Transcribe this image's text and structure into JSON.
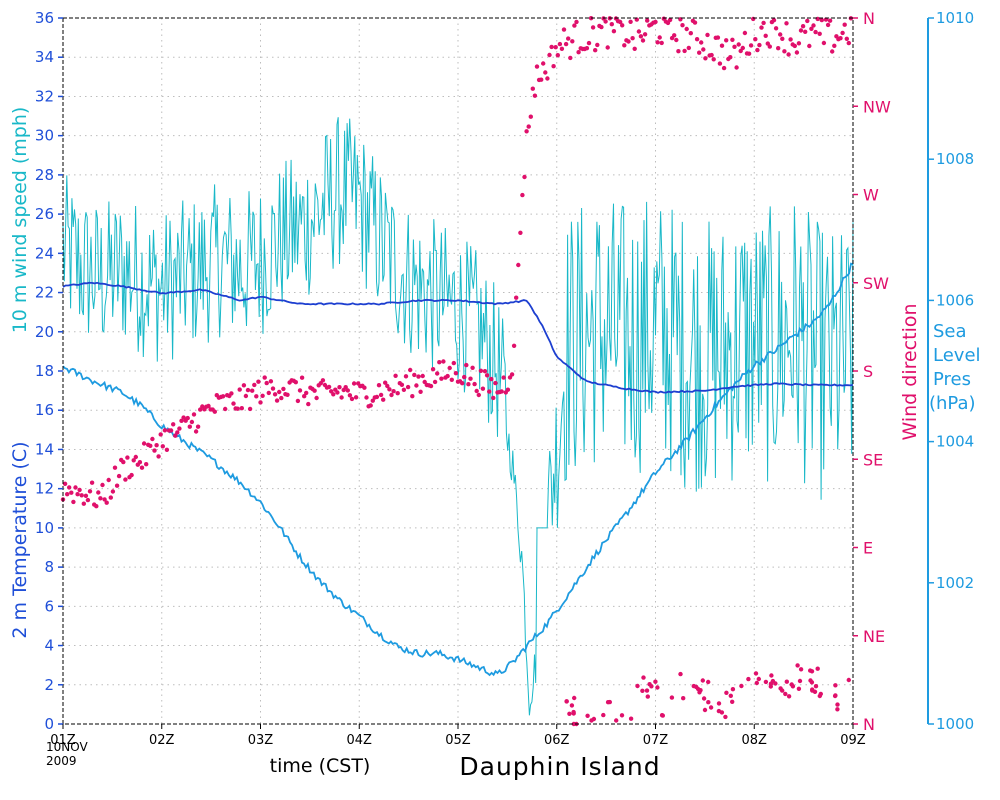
{
  "chart_data": {
    "type": "line",
    "title": "Dauphin Island",
    "xlabel": "time (CST)",
    "date_label": [
      "10NOV",
      "2009"
    ],
    "x_ticks": [
      "01Z",
      "02Z",
      "03Z",
      "04Z",
      "05Z",
      "06Z",
      "07Z",
      "08Z",
      "09Z"
    ],
    "xlim_hours": [
      1,
      9
    ],
    "axes": {
      "left": {
        "ylim": [
          0,
          36
        ],
        "ticks": [
          0,
          2,
          4,
          6,
          8,
          10,
          12,
          14,
          16,
          18,
          20,
          22,
          24,
          26,
          28,
          30,
          32,
          34,
          36
        ],
        "label_parts": {
          "temp": "2 m Temperature (C)",
          "mid": "10 m ",
          "wind": "wind speed (mph)"
        }
      },
      "right_direction": {
        "label": "Wind direction",
        "ticks": [
          "N",
          "NE",
          "E",
          "SE",
          "S",
          "SW",
          "W",
          "NW",
          "N"
        ]
      },
      "right_pressure": {
        "label_lines": [
          "Sea",
          "Level",
          "Pres",
          "(hPa)"
        ],
        "ylim": [
          1000,
          1010
        ],
        "ticks": [
          1000,
          1002,
          1004,
          1006,
          1008,
          1010
        ]
      }
    },
    "series": [
      {
        "name": "2 m Temperature (C)",
        "color": "#1e9be0",
        "x": [
          1.0,
          1.3,
          1.6,
          1.8,
          2.0,
          2.2,
          2.5,
          2.8,
          3.0,
          3.2,
          3.4,
          3.6,
          3.8,
          4.0,
          4.2,
          4.4,
          4.6,
          4.8,
          5.0,
          5.2,
          5.4,
          5.55,
          5.7,
          5.9,
          6.1,
          6.4,
          6.7,
          7.0,
          7.3,
          7.6,
          7.8,
          8.0,
          8.2,
          8.4,
          8.6,
          8.75,
          8.9,
          9.0
        ],
        "y": [
          18.2,
          17.5,
          16.9,
          16.2,
          15.2,
          14.5,
          13.5,
          12.3,
          11.3,
          10.0,
          8.5,
          7.3,
          6.3,
          5.5,
          4.6,
          3.9,
          3.6,
          3.6,
          3.3,
          2.9,
          2.5,
          3.1,
          4.0,
          5.1,
          6.5,
          8.7,
          10.7,
          12.8,
          14.4,
          16.2,
          17.3,
          18.3,
          19.0,
          19.8,
          20.5,
          21.3,
          22.6,
          23.5
        ]
      },
      {
        "name": "10 m wind speed (mph)",
        "color": "#19b8c8",
        "x": [
          1.0,
          1.2,
          1.4,
          1.6,
          1.8,
          2.0,
          2.2,
          2.4,
          2.6,
          2.8,
          3.0,
          3.2,
          3.4,
          3.6,
          3.8,
          4.0,
          4.2,
          4.4,
          4.6,
          4.8,
          5.0,
          5.2,
          5.4,
          5.55,
          5.65,
          5.72,
          5.8,
          5.9,
          6.1,
          6.4,
          6.7,
          7.0,
          7.3,
          7.6,
          7.9,
          8.2,
          8.4,
          8.6,
          8.8,
          9.0
        ],
        "y": [
          23.0,
          22.0,
          21.5,
          22.0,
          21.5,
          21.0,
          21.5,
          22.0,
          22.5,
          22.0,
          22.5,
          23.5,
          24.0,
          25.0,
          26.0,
          25.5,
          23.5,
          22.0,
          21.0,
          20.5,
          20.0,
          19.0,
          17.0,
          13.0,
          8.0,
          1.0,
          3.0,
          9.0,
          17.0,
          18.0,
          17.5,
          18.0,
          17.0,
          16.5,
          17.5,
          17.0,
          18.0,
          16.5,
          16.0,
          16.5
        ],
        "gust_range": [
          10,
          34
        ]
      },
      {
        "name": "Sea Level Pres (hPa)",
        "color": "#1d3fd0",
        "x": [
          1.0,
          1.3,
          1.6,
          2.0,
          2.4,
          2.8,
          3.0,
          3.4,
          3.8,
          4.2,
          4.6,
          5.0,
          5.4,
          5.7,
          5.85,
          6.0,
          6.3,
          6.7,
          7.0,
          7.5,
          7.8,
          8.2,
          8.6,
          9.0
        ],
        "y": [
          1006.2,
          1006.25,
          1006.2,
          1006.1,
          1006.15,
          1006.0,
          1006.05,
          1005.95,
          1005.95,
          1005.95,
          1006.0,
          1006.0,
          1005.95,
          1006.0,
          1005.65,
          1005.2,
          1004.85,
          1004.75,
          1004.7,
          1004.72,
          1004.78,
          1004.82,
          1004.8,
          1004.8
        ]
      },
      {
        "name": "Wind direction",
        "color": "#e0106b",
        "marker": "dot",
        "x": [
          1.0,
          1.2,
          1.4,
          1.6,
          1.8,
          2.0,
          2.2,
          2.4,
          2.6,
          2.8,
          3.0,
          3.2,
          3.4,
          3.6,
          3.8,
          4.0,
          4.2,
          4.4,
          4.6,
          4.8,
          5.0,
          5.2,
          5.4,
          5.5,
          5.55,
          5.6,
          5.65,
          5.7,
          5.75,
          5.8,
          5.9,
          6.0,
          6.2,
          6.4,
          6.6,
          6.8,
          7.0,
          7.2,
          7.4,
          7.6,
          7.8,
          8.0,
          8.2,
          8.4,
          8.6,
          8.8,
          9.0
        ],
        "y_deg": [
          120,
          118,
          115,
          130,
          135,
          145,
          150,
          158,
          163,
          165,
          170,
          172,
          170,
          168,
          170,
          168,
          170,
          172,
          175,
          178,
          180,
          175,
          170,
          175,
          185,
          220,
          270,
          300,
          320,
          330,
          335,
          345,
          350,
          352,
          355,
          350,
          355,
          352,
          350,
          345,
          340,
          352,
          355,
          348,
          352,
          350,
          355
        ],
        "scatter_low_x": [
          6.1,
          6.3,
          6.5,
          6.7,
          6.9,
          7.1,
          7.3,
          7.5,
          7.7,
          7.9,
          8.1,
          8.3,
          8.5,
          8.7,
          8.9,
          9.0
        ],
        "scatter_low_deg": [
          8,
          3,
          12,
          5,
          18,
          10,
          22,
          15,
          8,
          28,
          20,
          12,
          30,
          18,
          10,
          25
        ]
      }
    ]
  }
}
